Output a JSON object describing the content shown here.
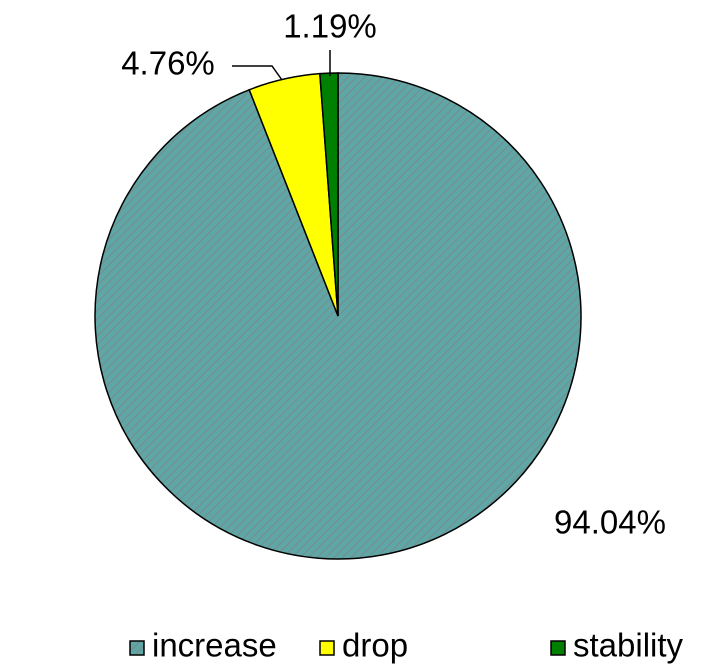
{
  "chart_data": {
    "type": "pie",
    "categories": [
      "increase",
      "drop",
      "stability"
    ],
    "values": [
      94.04,
      4.76,
      1.19
    ],
    "value_labels": [
      "94.04%",
      "4.76%",
      "1.19%"
    ],
    "colors": [
      "#5fa7a7",
      "#ffff00",
      "#008000"
    ],
    "legend": "bottom"
  }
}
